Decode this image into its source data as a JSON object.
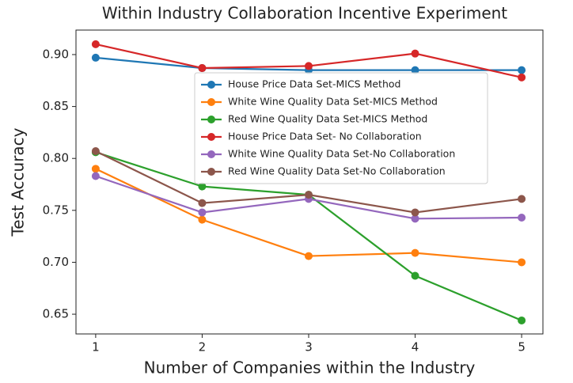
{
  "chart_data": {
    "type": "line",
    "title": "Within Industry Collaboration Incentive Experiment",
    "xlabel": "Number of Companies within the Industry",
    "ylabel": "Test Accuracy",
    "x": [
      1,
      2,
      3,
      4,
      5
    ],
    "xlim": [
      0.815,
      5.2
    ],
    "xticks": [
      1,
      2,
      3,
      4,
      5
    ],
    "ylim": [
      0.631,
      0.9236
    ],
    "yticks": [
      {
        "value": 0.65,
        "label": "0.65"
      },
      {
        "value": 0.7,
        "label": "0.70"
      },
      {
        "value": 0.75,
        "label": "0.75"
      },
      {
        "value": 0.8,
        "label": "0.80"
      },
      {
        "value": 0.85,
        "label": "0.85"
      },
      {
        "value": 0.9,
        "label": "0.90"
      }
    ],
    "legend": "upper center",
    "series": [
      {
        "name": "House Price Data Set-MICS Method",
        "color": "#1f77b4",
        "values": [
          0.897,
          0.887,
          0.885,
          0.885,
          0.885
        ]
      },
      {
        "name": "White Wine Quality Data Set-MICS Method",
        "color": "#ff7f0e",
        "values": [
          0.79,
          0.741,
          0.706,
          0.709,
          0.7
        ]
      },
      {
        "name": "Red Wine Quality Data Set-MICS Method",
        "color": "#2ca02c",
        "values": [
          0.806,
          0.773,
          0.765,
          0.687,
          0.644
        ]
      },
      {
        "name": "House Price Data Set- No Collaboration",
        "color": "#d62728",
        "values": [
          0.91,
          0.887,
          0.889,
          0.901,
          0.878
        ]
      },
      {
        "name": "White Wine Quality Data Set-No Collaboration",
        "color": "#9467bd",
        "values": [
          0.783,
          0.748,
          0.761,
          0.742,
          0.743
        ]
      },
      {
        "name": "Red Wine Quality Data Set-No Collaboration",
        "color": "#8c564b",
        "values": [
          0.807,
          0.757,
          0.765,
          0.748,
          0.761
        ]
      }
    ]
  }
}
